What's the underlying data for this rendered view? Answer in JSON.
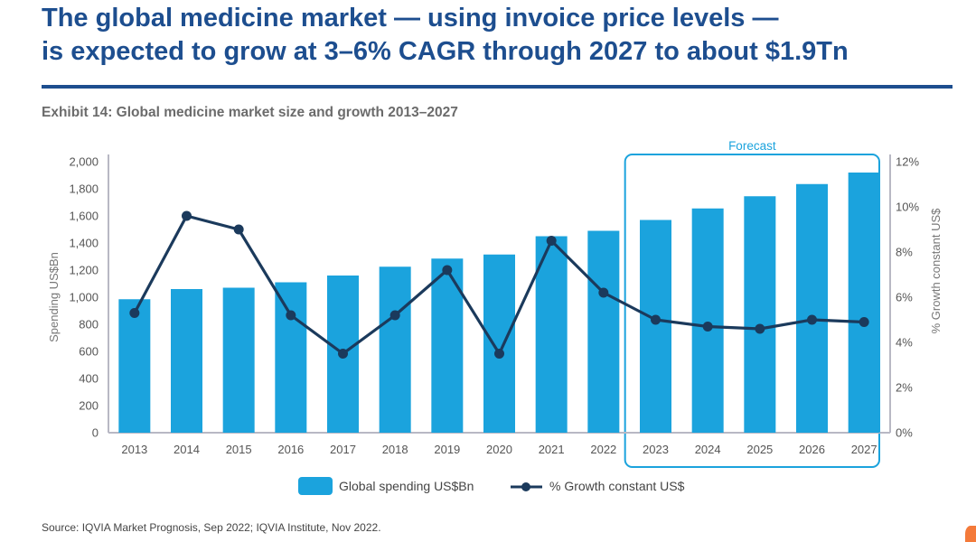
{
  "header": {
    "title_line1": "The global medicine market — using invoice price levels —",
    "title_line2": "is expected to grow at 3–6% CAGR through 2027 to about $1.9Tn",
    "subtitle": "Exhibit 14: Global medicine market size and growth 2013–2027"
  },
  "footer": {
    "source": "Source: IQVIA Market Prognosis, Sep 2022; IQVIA Institute, Nov 2022."
  },
  "chart_data": {
    "type": "bar",
    "categories": [
      "2013",
      "2014",
      "2015",
      "2016",
      "2017",
      "2018",
      "2019",
      "2020",
      "2021",
      "2022",
      "2023",
      "2024",
      "2025",
      "2026",
      "2027"
    ],
    "series": [
      {
        "name": "Global spending US$Bn",
        "type": "bar",
        "axis": "left",
        "values": [
          985,
          1060,
          1070,
          1110,
          1160,
          1225,
          1285,
          1315,
          1450,
          1490,
          1570,
          1655,
          1745,
          1835,
          1920
        ]
      },
      {
        "name": "% Growth constant US$",
        "type": "line",
        "axis": "right",
        "values": [
          5.3,
          9.6,
          9.0,
          5.2,
          3.5,
          5.2,
          7.2,
          3.5,
          8.5,
          6.2,
          5.0,
          4.7,
          4.6,
          5.0,
          4.9
        ]
      }
    ],
    "ylabel": "Spending US$Bn",
    "ylim": [
      0,
      2000
    ],
    "yticks": [
      "0",
      "200",
      "400",
      "600",
      "800",
      "1,000",
      "1,200",
      "1,400",
      "1,600",
      "1,800",
      "2,000"
    ],
    "ylabel_right": "% Growth constant US$",
    "ylim_right": [
      0,
      12
    ],
    "yticks_right": [
      "0%",
      "2%",
      "4%",
      "6%",
      "8%",
      "10%",
      "12%"
    ],
    "forecast_label": "Forecast",
    "forecast_categories": [
      "2023",
      "2024",
      "2025",
      "2026",
      "2027"
    ],
    "legend_position": "bottom-center",
    "grid": false,
    "colors": {
      "bar": "#1ba3dd",
      "line": "#1b3a5c",
      "forecast_box": "#1ba3dd",
      "axis": "#b8b8c4"
    }
  }
}
